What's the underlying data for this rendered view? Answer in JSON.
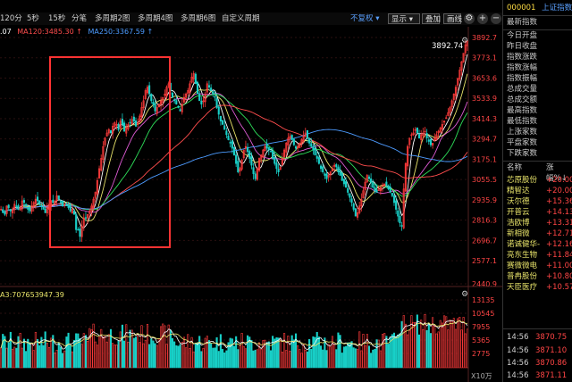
{
  "quote": {
    "code": "000001",
    "name": "上证指数"
  },
  "toolbar": {
    "timeframes": [
      "120分",
      "5秒",
      "15秒",
      "分笔",
      "多周期2图",
      "多周期4图",
      "多周期6图",
      "自定义周期"
    ],
    "adjust_label": "不复权",
    "display_label": "显示",
    "overlay_label": "叠加",
    "draw_label": "画线",
    "zoom_in_label": "+",
    "zoom_out_label": "−"
  },
  "ma_legend": [
    {
      "label": ".07",
      "color": "#ffffff"
    },
    {
      "label": "MA120:3485.30",
      "color": "#ff4d4d"
    },
    {
      "label": "MA250:3367.59",
      "color": "#4d9bff"
    }
  ],
  "colors": {
    "up": "#ff3b3b",
    "down": "#19d0c8",
    "ma_white": "#ffffff",
    "ma_yellow": "#e8e36a",
    "ma_magenta": "#e05cd6",
    "ma_green": "#2ee05a",
    "ma_red": "#ff4d4d",
    "ma_blue": "#4d9bff",
    "highlight": "#ff3333",
    "axis": "#ff4545"
  },
  "price_axis": {
    "ticks": [
      "3892.7",
      "3773.1",
      "3653.6",
      "3533.9",
      "3414.3",
      "3294.7",
      "3175.1",
      "3055.5",
      "2935.9",
      "2816.3",
      "2696.7",
      "2577.1",
      "2440.9"
    ]
  },
  "price_tag": "3892.74",
  "volume": {
    "label": "A3:707653947.39",
    "ticks": [
      "13135",
      "10545",
      "7955",
      "5365",
      "2775"
    ],
    "unit": "X10万"
  },
  "chart_data": {
    "type": "candlestick",
    "ylim": [
      2440.9,
      3892.7
    ],
    "close": [
      2880,
      2860,
      2850,
      2900,
      2890,
      2870,
      2880,
      2910,
      2900,
      2880,
      2890,
      2930,
      2920,
      2900,
      2880,
      2870,
      2900,
      2920,
      2940,
      2930,
      2910,
      2900,
      2880,
      2860,
      2890,
      2910,
      2930,
      2920,
      2930,
      2960,
      2940,
      2920,
      2900,
      2910,
      2900,
      2890,
      2870,
      2880,
      2850,
      2760,
      2760,
      2720,
      2780,
      2830,
      2830,
      2850,
      2870,
      2900,
      2940,
      2980,
      3050,
      3120,
      3180,
      3250,
      3300,
      3330,
      3350,
      3330,
      3370,
      3390,
      3380,
      3350,
      3400,
      3380,
      3340,
      3360,
      3380,
      3390,
      3410,
      3400,
      3370,
      3390,
      3430,
      3480,
      3520,
      3580,
      3600,
      3560,
      3520,
      3500,
      3460,
      3480,
      3500,
      3520,
      3540,
      3560,
      3600,
      3620,
      3580,
      3540,
      3520,
      3500,
      3480,
      3460,
      3500,
      3540,
      3560,
      3580,
      3620,
      3660,
      3680,
      3620,
      3560,
      3520,
      3500,
      3520,
      3560,
      3620,
      3600,
      3580,
      3560,
      3540,
      3480,
      3440,
      3400,
      3380,
      3350,
      3320,
      3290,
      3270,
      3240,
      3200,
      3150,
      3100,
      3120,
      3170,
      3230,
      3250,
      3220,
      3180,
      3140,
      3090,
      3060,
      3120,
      3180,
      3200,
      3230,
      3250,
      3240,
      3230,
      3220,
      3180,
      3150,
      3120,
      3100,
      3130,
      3180,
      3230,
      3270,
      3300,
      3310,
      3290,
      3260,
      3240,
      3250,
      3270,
      3290,
      3310,
      3330,
      3300,
      3270,
      3250,
      3230,
      3200,
      3180,
      3150,
      3120,
      3100,
      3080,
      3060,
      3080,
      3100,
      3120,
      3140,
      3130,
      3100,
      3080,
      3050,
      3030,
      3010,
      2980,
      2950,
      2920,
      2880,
      2840,
      2860,
      2900,
      2940,
      2990,
      3040,
      3080,
      3060,
      3040,
      3010,
      2990,
      2980,
      3000,
      3010,
      3020,
      3030,
      3020,
      3000,
      2980,
      2960,
      2920,
      2880,
      2840,
      2800,
      2780,
      3000,
      3150,
      3250,
      3300,
      3320,
      3330,
      3350,
      3330,
      3300,
      3320,
      3330,
      3340,
      3300,
      3280,
      3260,
      3270,
      3300,
      3320,
      3340,
      3360,
      3380,
      3400,
      3420,
      3450,
      3480,
      3520,
      3560,
      3600,
      3650,
      3700,
      3750,
      3800,
      3850,
      3870
    ],
    "annotations": [
      {
        "text": "3892.74",
        "kind": "high_marker"
      }
    ]
  }
}
